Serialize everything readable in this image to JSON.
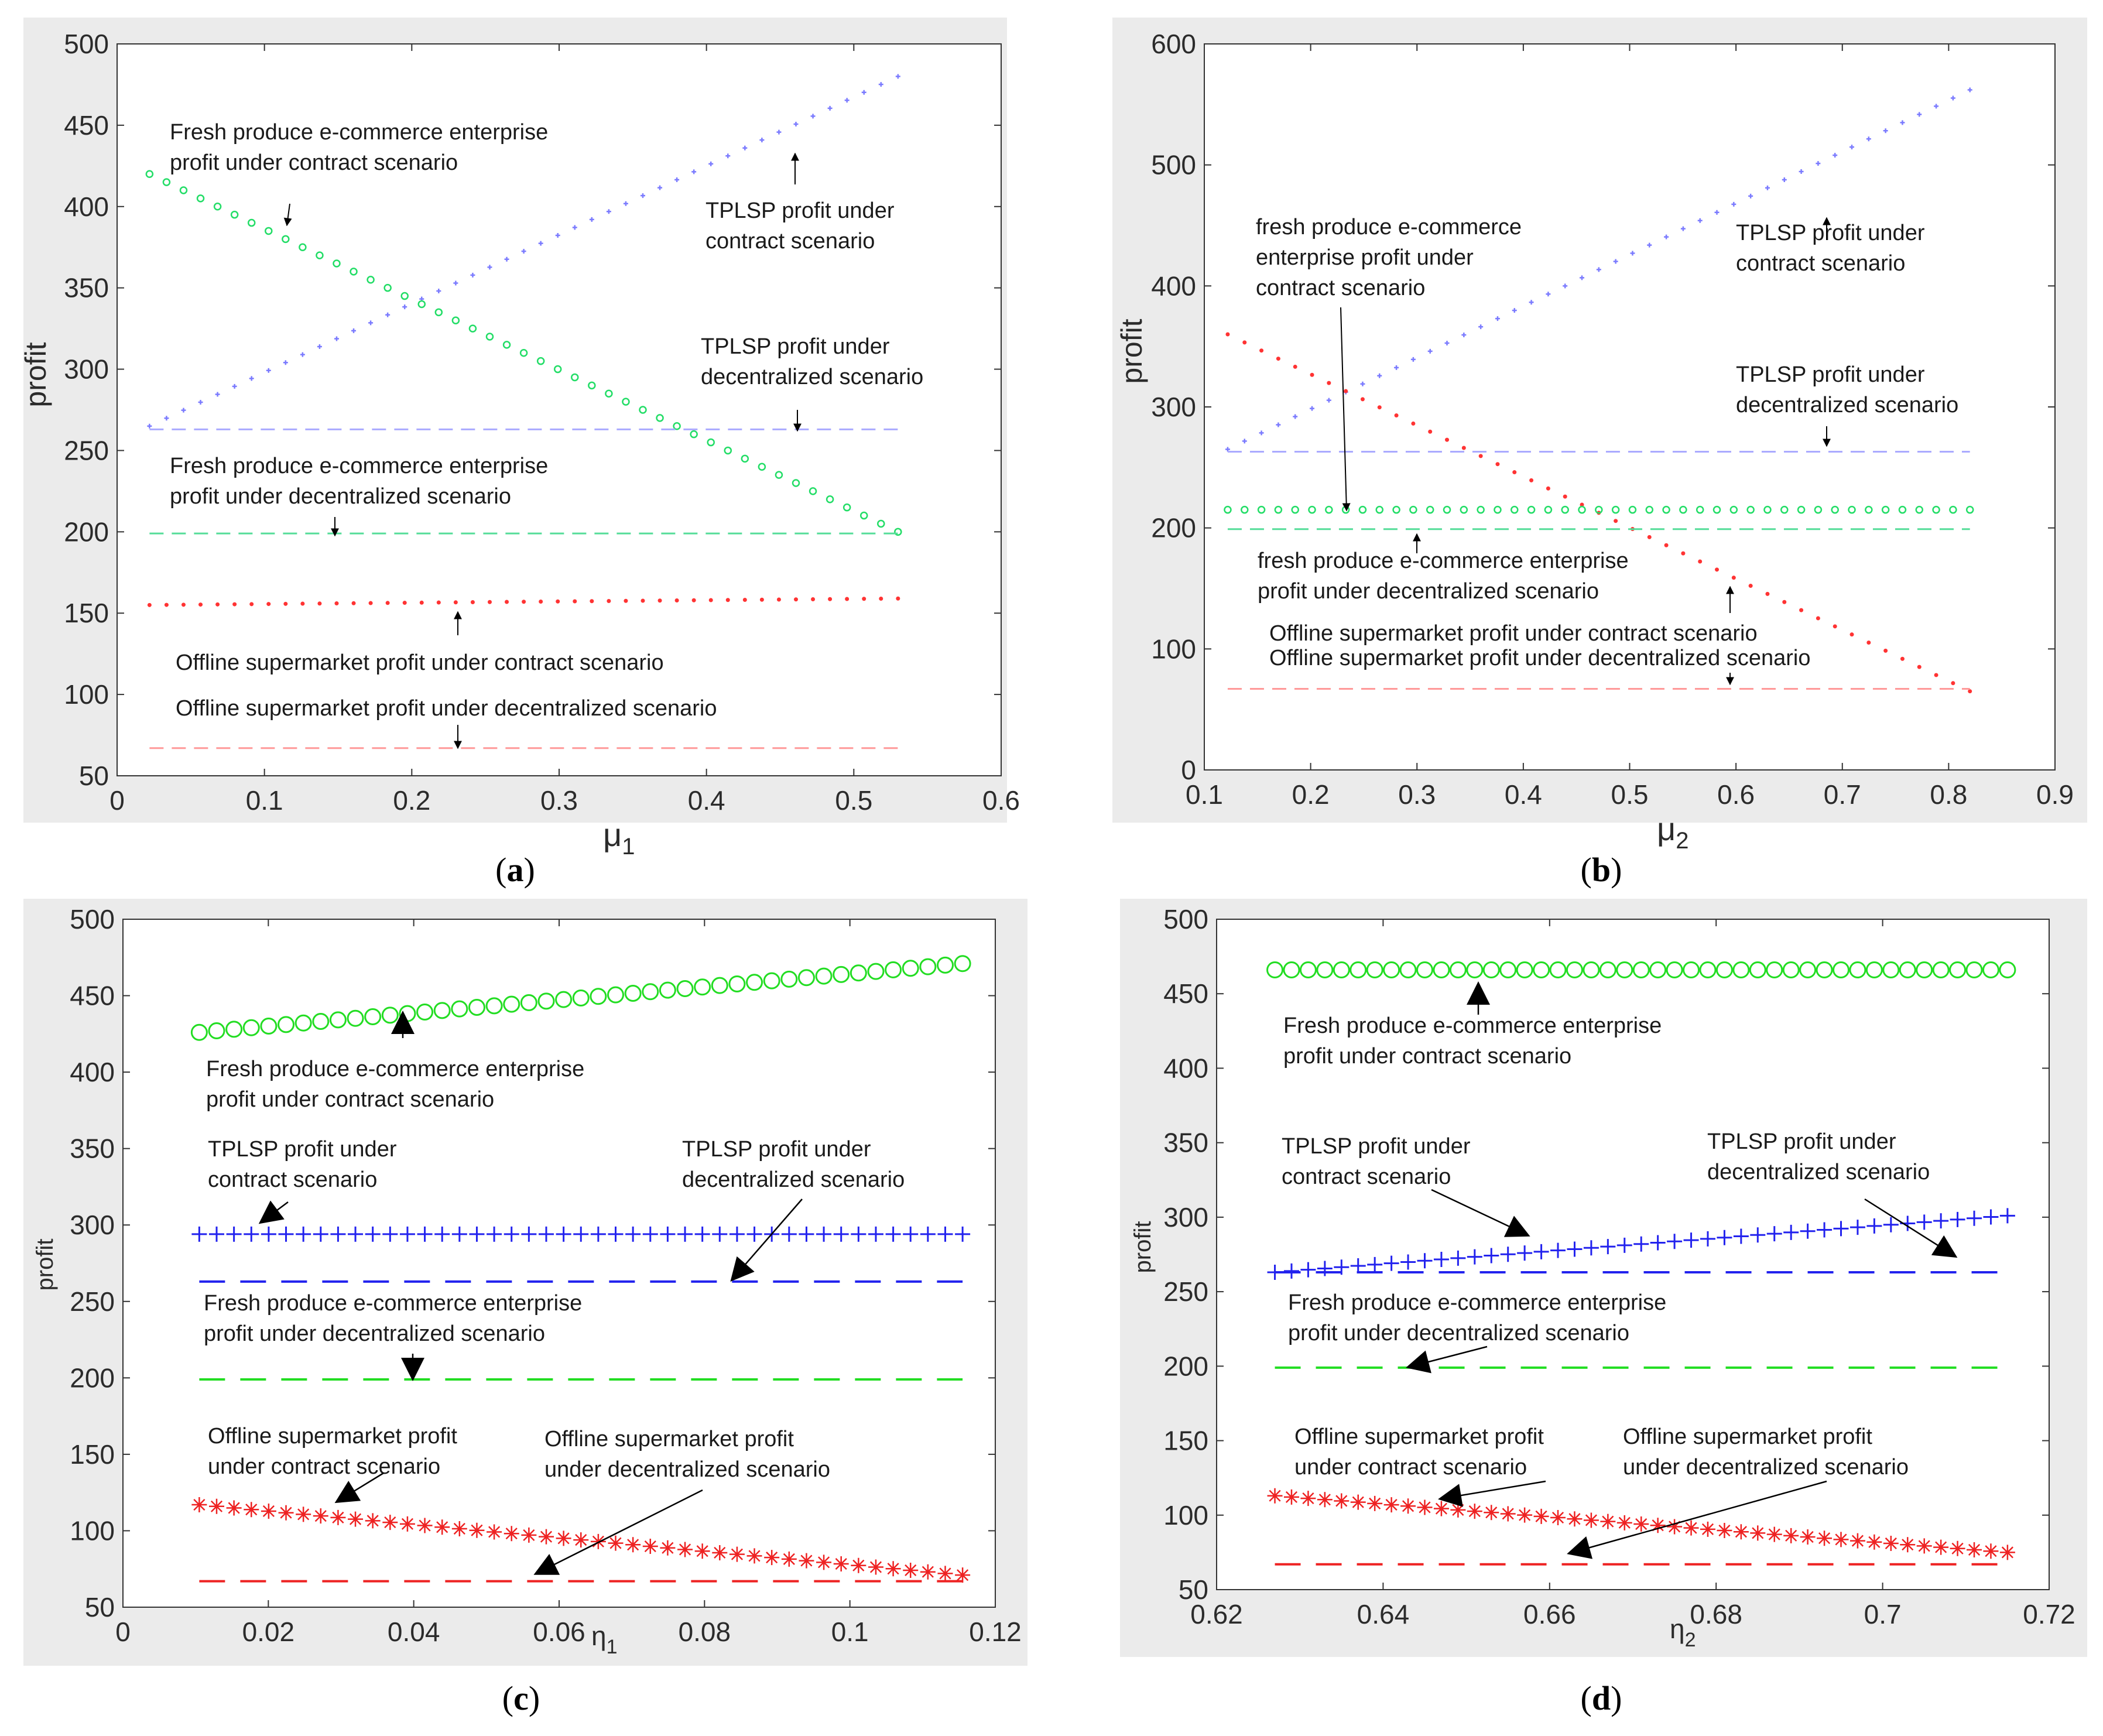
{
  "chart_data": [
    {
      "type": "scatter",
      "panel_label": "a",
      "xlabel": "μ",
      "xlabel_sub": "1",
      "ylabel": "profit",
      "xlim": [
        0,
        0.6
      ],
      "ylim": [
        50,
        500
      ],
      "xticks": [
        "0",
        "0.1",
        "0.2",
        "0.3",
        "0.4",
        "0.5",
        "0.6"
      ],
      "yticks": [
        "50",
        "100",
        "150",
        "200",
        "250",
        "300",
        "350",
        "400",
        "450",
        "500"
      ],
      "series": [
        {
          "name": "TPLSP profit under contract scenario",
          "style": "plus-dots",
          "color": "#7b7bff",
          "x": [
            0.022,
            0.53
          ],
          "y": [
            265,
            480
          ],
          "n": 45
        },
        {
          "name": "Fresh produce e-commerce enterprise profit under contract scenario",
          "style": "circles",
          "color": "#22dd66",
          "x": [
            0.022,
            0.53
          ],
          "y": [
            420,
            200
          ],
          "n": 45
        },
        {
          "name": "Offline supermarket profit under contract scenario",
          "style": "stars",
          "color": "#ff3333",
          "x": [
            0.022,
            0.53
          ],
          "y": [
            155,
            159
          ],
          "n": 45
        },
        {
          "name": "TPLSP profit under decentralized scenario",
          "style": "dashed",
          "color": "#aaaaff",
          "x": [
            0.022,
            0.53
          ],
          "y": [
            263,
            263
          ]
        },
        {
          "name": "Fresh produce e-commerce enterprise profit under decentralized scenario",
          "style": "dashed",
          "color": "#55dd99",
          "x": [
            0.022,
            0.53
          ],
          "y": [
            199,
            199
          ]
        },
        {
          "name": "Offline supermarket profit under decentralized scenario",
          "style": "dashed",
          "color": "#ff9999",
          "x": [
            0.022,
            0.53
          ],
          "y": [
            67,
            67
          ]
        }
      ],
      "annotations": [
        {
          "lines": [
            "Fresh produce e-commerce enterprise",
            "profit under contract scenario"
          ]
        },
        {
          "lines": [
            "TPLSP profit under",
            "contract scenario"
          ]
        },
        {
          "lines": [
            "TPLSP profit under",
            "decentralized scenario"
          ]
        },
        {
          "lines": [
            "Fresh produce e-commerce enterprise",
            "profit under decentralized scenario"
          ]
        },
        {
          "lines": [
            "Offline supermarket profit under contract scenario"
          ]
        },
        {
          "lines": [
            "Offline supermarket profit under decentralized scenario"
          ]
        }
      ]
    },
    {
      "type": "scatter",
      "panel_label": "b",
      "xlabel": "μ",
      "xlabel_sub": "2",
      "ylabel": "profit",
      "xlim": [
        0.1,
        0.9
      ],
      "ylim": [
        0,
        600
      ],
      "xticks": [
        "0.1",
        "0.2",
        "0.3",
        "0.4",
        "0.5",
        "0.6",
        "0.7",
        "0.8",
        "0.9"
      ],
      "yticks": [
        "0",
        "100",
        "200",
        "300",
        "400",
        "500",
        "600"
      ],
      "series": [
        {
          "name": "TPLSP profit under contract scenario",
          "style": "plus-dots",
          "color": "#7b7bff",
          "x": [
            0.122,
            0.82
          ],
          "y": [
            265,
            562
          ],
          "n": 45
        },
        {
          "name": "Offline supermarket profit under contract scenario",
          "style": "stars",
          "color": "#ff3333",
          "x": [
            0.122,
            0.82
          ],
          "y": [
            360,
            65
          ],
          "n": 45
        },
        {
          "name": "fresh produce e-commerce enterprise profit under contract scenario",
          "style": "circles",
          "color": "#22dd66",
          "x": [
            0.122,
            0.82
          ],
          "y": [
            215,
            215
          ],
          "n": 45
        },
        {
          "name": "TPLSP profit under decentralized scenario",
          "style": "dashed",
          "color": "#aaaaff",
          "x": [
            0.122,
            0.82
          ],
          "y": [
            263,
            263
          ]
        },
        {
          "name": "fresh produce e-commerce enterprise profit under decentralized scenario",
          "style": "dashed",
          "color": "#55dd99",
          "x": [
            0.122,
            0.82
          ],
          "y": [
            199,
            199
          ]
        },
        {
          "name": "Offline supermarket profit under decentralized scenario",
          "style": "dashed",
          "color": "#ff9999",
          "x": [
            0.122,
            0.82
          ],
          "y": [
            67,
            67
          ]
        }
      ],
      "annotations": [
        {
          "lines": [
            "fresh produce e-commerce",
            "enterprise profit under",
            "contract scenario"
          ]
        },
        {
          "lines": [
            "TPLSP profit under",
            "contract scenario"
          ]
        },
        {
          "lines": [
            "TPLSP profit under",
            "decentralized scenario"
          ]
        },
        {
          "lines": [
            "fresh produce e-commerce enterprise",
            "profit under decentralized scenario"
          ]
        },
        {
          "lines": [
            "Offline supermarket profit under contract scenario"
          ]
        },
        {
          "lines": [
            "Offline supermarket profit under decentralized scenario"
          ]
        }
      ]
    },
    {
      "type": "scatter",
      "panel_label": "c",
      "xlabel": "η",
      "xlabel_sub": "1",
      "ylabel": "profit",
      "xlim": [
        0,
        0.12
      ],
      "ylim": [
        50,
        500
      ],
      "xticks": [
        "0",
        "0.02",
        "0.04",
        "0.06",
        "0.08",
        "0.1",
        "0.12"
      ],
      "yticks": [
        "50",
        "100",
        "150",
        "200",
        "250",
        "300",
        "350",
        "400",
        "450",
        "500"
      ],
      "series": [
        {
          "name": "Fresh produce e-commerce enterprise profit under contract scenario",
          "style": "big-circles",
          "color": "#22dd22",
          "x": [
            0.0105,
            0.1155
          ],
          "y": [
            426,
            471
          ],
          "n": 45
        },
        {
          "name": "TPLSP profit under contract scenario",
          "style": "big-plus",
          "color": "#2222ee",
          "x": [
            0.0105,
            0.1155
          ],
          "y": [
            294,
            294
          ],
          "n": 45
        },
        {
          "name": "Offline supermarket profit under contract scenario",
          "style": "big-stars",
          "color": "#ee2222",
          "x": [
            0.0105,
            0.1155
          ],
          "y": [
            117,
            71
          ],
          "n": 45
        },
        {
          "name": "TPLSP profit under decentralized scenario",
          "style": "dashed",
          "color": "#2222ee",
          "x": [
            0.0105,
            0.1155
          ],
          "y": [
            263,
            263
          ]
        },
        {
          "name": "Fresh produce e-commerce enterprise profit under decentralized scenario",
          "style": "dashed",
          "color": "#22dd22",
          "x": [
            0.0105,
            0.1155
          ],
          "y": [
            199,
            199
          ]
        },
        {
          "name": "Offline supermarket profit under decentralized scenario",
          "style": "dashed",
          "color": "#ee2222",
          "x": [
            0.0105,
            0.1155
          ],
          "y": [
            67,
            67
          ]
        }
      ],
      "annotations": [
        {
          "lines": [
            "Fresh produce e-commerce enterprise",
            "profit under contract scenario"
          ]
        },
        {
          "lines": [
            "TPLSP profit under",
            "contract scenario"
          ]
        },
        {
          "lines": [
            "TPLSP profit under",
            "decentralized scenario"
          ]
        },
        {
          "lines": [
            "Fresh produce e-commerce enterprise",
            "profit under decentralized scenario"
          ]
        },
        {
          "lines": [
            "Offline supermarket profit",
            "under contract scenario"
          ]
        },
        {
          "lines": [
            "Offline supermarket profit",
            "under decentralized scenario"
          ]
        }
      ]
    },
    {
      "type": "scatter",
      "panel_label": "d",
      "xlabel": "η",
      "xlabel_sub": "2",
      "ylabel": "profit",
      "xlim": [
        0.62,
        0.72
      ],
      "ylim": [
        50,
        500
      ],
      "xticks": [
        "0.62",
        "0.64",
        "0.66",
        "0.68",
        "0.7",
        "0.72"
      ],
      "yticks": [
        "50",
        "100",
        "150",
        "200",
        "250",
        "300",
        "350",
        "400",
        "450",
        "500"
      ],
      "series": [
        {
          "name": "Fresh produce e-commerce enterprise profit under contract scenario",
          "style": "big-circles",
          "color": "#22dd22",
          "x": [
            0.627,
            0.715
          ],
          "y": [
            466,
            466
          ],
          "n": 45
        },
        {
          "name": "TPLSP profit under contract scenario",
          "style": "big-plus",
          "color": "#2222ee",
          "x": [
            0.627,
            0.715
          ],
          "y": [
            263,
            301
          ],
          "n": 45
        },
        {
          "name": "Offline supermarket profit under contract scenario",
          "style": "big-stars",
          "color": "#ee2222",
          "x": [
            0.627,
            0.715
          ],
          "y": [
            113,
            75
          ],
          "n": 45
        },
        {
          "name": "TPLSP profit under decentralized scenario",
          "style": "dashed",
          "color": "#2222ee",
          "x": [
            0.627,
            0.715
          ],
          "y": [
            263,
            263
          ]
        },
        {
          "name": "Fresh produce e-commerce enterprise profit under decentralized scenario",
          "style": "dashed",
          "color": "#22dd22",
          "x": [
            0.627,
            0.715
          ],
          "y": [
            199,
            199
          ]
        },
        {
          "name": "Offline supermarket profit under decentralized scenario",
          "style": "dashed",
          "color": "#ee2222",
          "x": [
            0.627,
            0.715
          ],
          "y": [
            67,
            67
          ]
        }
      ],
      "annotations": [
        {
          "lines": [
            "Fresh produce e-commerce enterprise",
            "profit under contract scenario"
          ]
        },
        {
          "lines": [
            "TPLSP profit under",
            "contract scenario"
          ]
        },
        {
          "lines": [
            "TPLSP profit under",
            "decentralized scenario"
          ]
        },
        {
          "lines": [
            "Fresh produce e-commerce enterprise",
            "profit under decentralized scenario"
          ]
        },
        {
          "lines": [
            "Offline supermarket profit",
            "under contract scenario"
          ]
        },
        {
          "lines": [
            "Offline supermarket profit",
            "under decentralized scenario"
          ]
        }
      ]
    }
  ]
}
